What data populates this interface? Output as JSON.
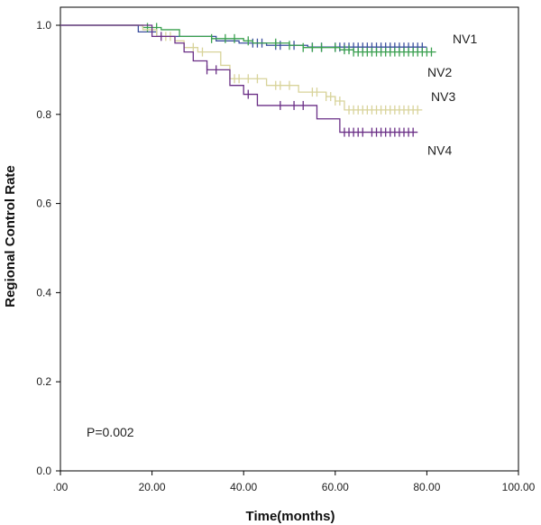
{
  "chart_data": {
    "type": "line",
    "subtype": "kaplan-meier",
    "title": "",
    "xlabel": "Time(months)",
    "ylabel": "Regional Control Rate",
    "xlim": [
      0,
      100
    ],
    "ylim": [
      0,
      1.0
    ],
    "xticks": [
      0,
      20,
      40,
      60,
      80,
      100
    ],
    "xtick_labels": [
      ".00",
      "20.00",
      "40.00",
      "60.00",
      "80.00",
      "100.00"
    ],
    "yticks": [
      0,
      0.2,
      0.4,
      0.6,
      0.8,
      1.0
    ],
    "ytick_labels": [
      "0.0",
      "0.2",
      "0.4",
      "0.6",
      "0.8",
      "1.0"
    ],
    "grid": false,
    "annotation": "P=0.002",
    "series": [
      {
        "name": "NV1",
        "color": "#3b4f9e",
        "steps": [
          [
            0,
            1.0
          ],
          [
            17,
            0.985
          ],
          [
            21,
            0.975
          ],
          [
            34,
            0.965
          ],
          [
            39,
            0.96
          ],
          [
            45,
            0.955
          ],
          [
            54,
            0.951
          ],
          [
            80,
            0.951
          ]
        ],
        "censor": [
          42,
          43,
          44,
          47,
          48,
          51,
          55,
          57,
          60,
          61,
          62,
          63,
          64,
          65,
          66,
          67,
          68,
          69,
          70,
          71,
          72,
          73,
          74,
          75,
          76,
          77,
          78,
          79
        ]
      },
      {
        "name": "NV2",
        "color": "#3aa04f",
        "steps": [
          [
            0,
            1.0
          ],
          [
            18,
            0.995
          ],
          [
            22,
            0.99
          ],
          [
            26,
            0.975
          ],
          [
            33,
            0.97
          ],
          [
            40,
            0.965
          ],
          [
            42,
            0.96
          ],
          [
            50,
            0.955
          ],
          [
            53,
            0.95
          ],
          [
            61,
            0.945
          ],
          [
            64,
            0.94
          ],
          [
            82,
            0.94
          ]
        ],
        "censor": [
          19,
          21,
          33,
          36,
          38,
          41,
          47,
          50,
          53,
          55,
          57,
          60,
          62,
          63,
          64,
          65,
          66,
          67,
          68,
          69,
          70,
          71,
          72,
          73,
          74,
          75,
          76,
          77,
          78,
          79,
          80,
          81
        ]
      },
      {
        "name": "NV3",
        "color": "#d8d39a",
        "steps": [
          [
            0,
            1.0
          ],
          [
            18,
            0.99
          ],
          [
            21,
            0.975
          ],
          [
            25,
            0.965
          ],
          [
            27,
            0.95
          ],
          [
            30,
            0.94
          ],
          [
            35,
            0.91
          ],
          [
            37,
            0.88
          ],
          [
            45,
            0.865
          ],
          [
            52,
            0.85
          ],
          [
            58,
            0.84
          ],
          [
            60,
            0.83
          ],
          [
            62,
            0.81
          ],
          [
            79,
            0.81
          ]
        ],
        "censor": [
          23,
          24,
          29,
          31,
          38,
          39,
          41,
          43,
          47,
          48,
          50,
          55,
          56,
          58,
          59,
          60,
          61,
          63,
          64,
          65,
          66,
          67,
          68,
          69,
          70,
          71,
          72,
          73,
          74,
          75,
          76,
          77,
          78
        ]
      },
      {
        "name": "NV4",
        "color": "#6a2f86",
        "steps": [
          [
            0,
            1.0
          ],
          [
            20,
            0.975
          ],
          [
            25,
            0.96
          ],
          [
            27,
            0.94
          ],
          [
            29,
            0.92
          ],
          [
            32,
            0.9
          ],
          [
            37,
            0.865
          ],
          [
            40,
            0.845
          ],
          [
            43,
            0.82
          ],
          [
            56,
            0.79
          ],
          [
            61,
            0.76
          ],
          [
            78,
            0.76
          ]
        ],
        "censor": [
          22,
          32,
          34,
          41,
          48,
          51,
          53,
          62,
          63,
          64,
          65,
          66,
          68,
          69,
          70,
          71,
          72,
          73,
          74,
          75,
          76,
          77
        ]
      }
    ],
    "series_label_anchor": {
      "NV1": 0.96,
      "NV2": 0.885,
      "NV3": 0.83,
      "NV4": 0.71
    }
  }
}
